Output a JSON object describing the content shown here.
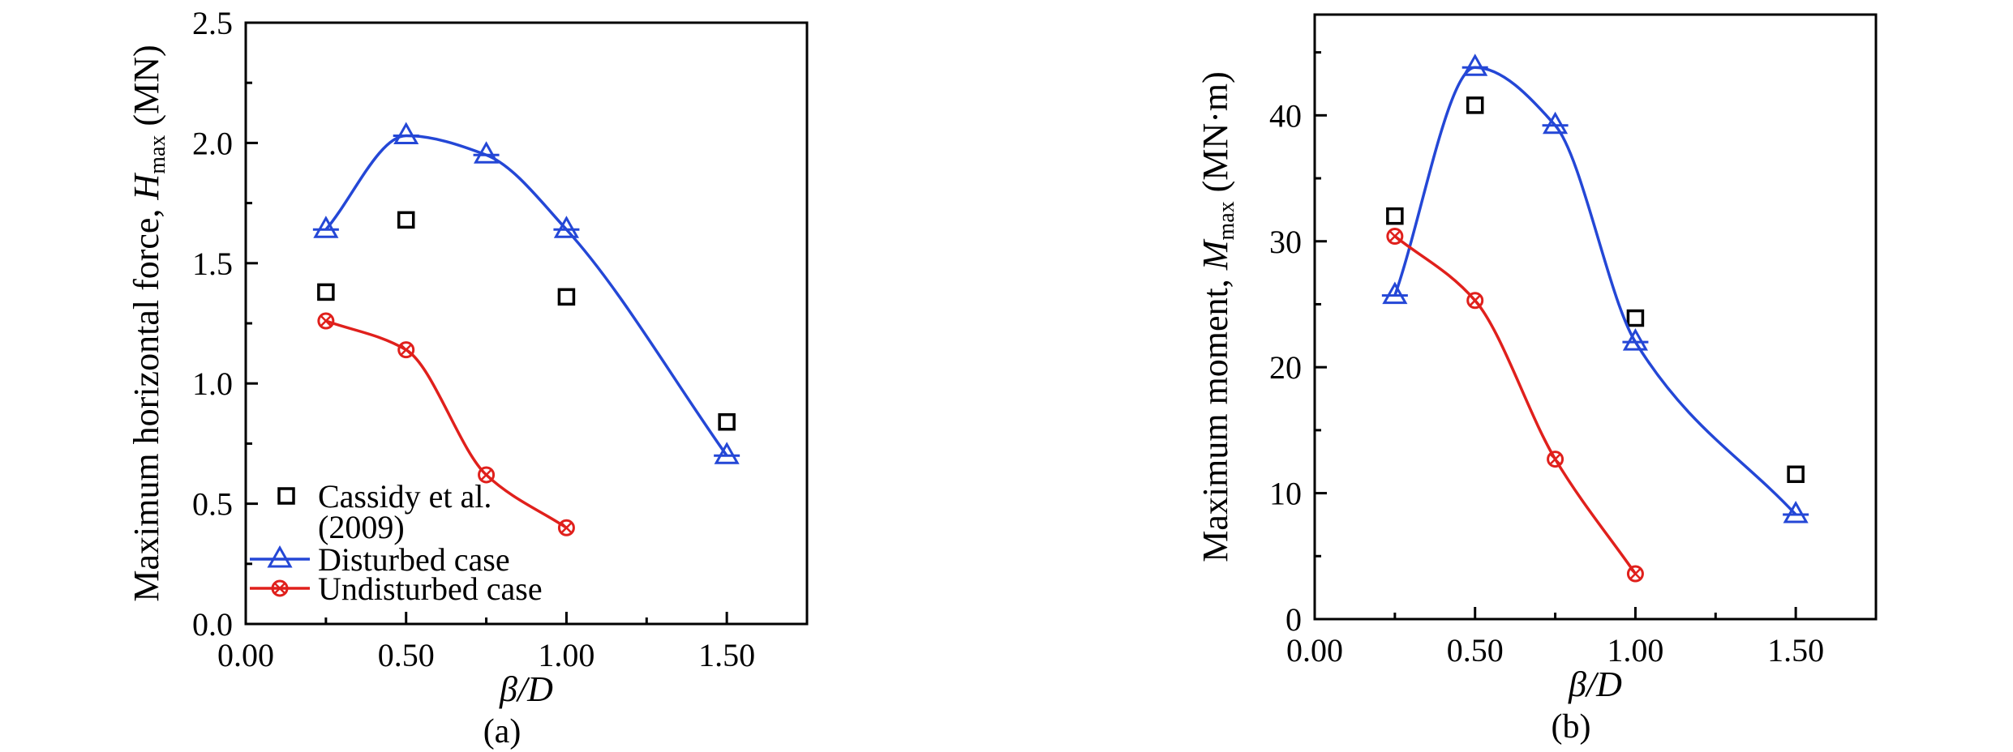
{
  "chart_data": [
    {
      "type": "scatter",
      "panel_label": "(a)",
      "xlabel": "β/D",
      "ylabel_main": "Maximum horizontal force, ",
      "ylabel_var": "H",
      "ylabel_sub": "max",
      "ylabel_unit": " (MN)",
      "xlim": [
        0,
        1.75
      ],
      "ylim": [
        0,
        2.5
      ],
      "xticks": [
        0,
        0.5,
        1.0,
        1.5
      ],
      "xtick_labels": [
        "0.00",
        "0.50",
        "1.00",
        "1.50"
      ],
      "yticks": [
        0,
        0.5,
        1.0,
        1.5,
        2.0,
        2.5
      ],
      "ytick_labels": [
        "0.0",
        "0.5",
        "1.0",
        "1.5",
        "2.0",
        "2.5"
      ],
      "legend_position": "bottom-left",
      "series": [
        {
          "name": "Cassidy et al. (2009)",
          "legend_lines": [
            "Cassidy et al.",
            "(2009)"
          ],
          "marker": "square",
          "color": "#000000",
          "line": false,
          "x": [
            0.25,
            0.5,
            1.0,
            1.5
          ],
          "y": [
            1.38,
            1.68,
            1.36,
            0.84
          ]
        },
        {
          "name": "Disturbed case",
          "legend_lines": [
            "Disturbed case"
          ],
          "marker": "triangle",
          "color": "#2447d6",
          "line": true,
          "x": [
            0.25,
            0.5,
            0.75,
            1.0,
            1.5
          ],
          "y": [
            1.64,
            2.03,
            1.95,
            1.64,
            0.7
          ]
        },
        {
          "name": "Undisturbed case",
          "legend_lines": [
            "Undisturbed case"
          ],
          "marker": "circle-x",
          "color": "#e0201c",
          "line": true,
          "x": [
            0.25,
            0.5,
            0.75,
            1.0
          ],
          "y": [
            1.26,
            1.14,
            0.62,
            0.4
          ]
        }
      ]
    },
    {
      "type": "scatter",
      "panel_label": "(b)",
      "xlabel": "β/D",
      "ylabel_main": "Maximum moment, ",
      "ylabel_var": "M",
      "ylabel_sub": "max",
      "ylabel_unit": " (MN·m)",
      "xlim": [
        0,
        1.75
      ],
      "ylim": [
        0,
        48
      ],
      "xticks": [
        0,
        0.5,
        1.0,
        1.5
      ],
      "xtick_labels": [
        "0.00",
        "0.50",
        "1.00",
        "1.50"
      ],
      "yticks": [
        0,
        10,
        20,
        30,
        40
      ],
      "ytick_labels": [
        "0",
        "10",
        "20",
        "30",
        "40"
      ],
      "series": [
        {
          "name": "Cassidy et al. (2009)",
          "marker": "square",
          "color": "#000000",
          "line": false,
          "x": [
            0.25,
            0.5,
            1.0,
            1.5
          ],
          "y": [
            32.0,
            40.8,
            23.9,
            11.5
          ]
        },
        {
          "name": "Disturbed case",
          "marker": "triangle",
          "color": "#2447d6",
          "line": true,
          "x": [
            0.25,
            0.5,
            0.75,
            1.0,
            1.5
          ],
          "y": [
            25.7,
            43.8,
            39.2,
            22.0,
            8.3
          ]
        },
        {
          "name": "Undisturbed case",
          "marker": "circle-x",
          "color": "#e0201c",
          "line": true,
          "x": [
            0.25,
            0.5,
            0.75,
            1.0
          ],
          "y": [
            30.4,
            25.3,
            12.7,
            3.6
          ]
        }
      ]
    }
  ]
}
